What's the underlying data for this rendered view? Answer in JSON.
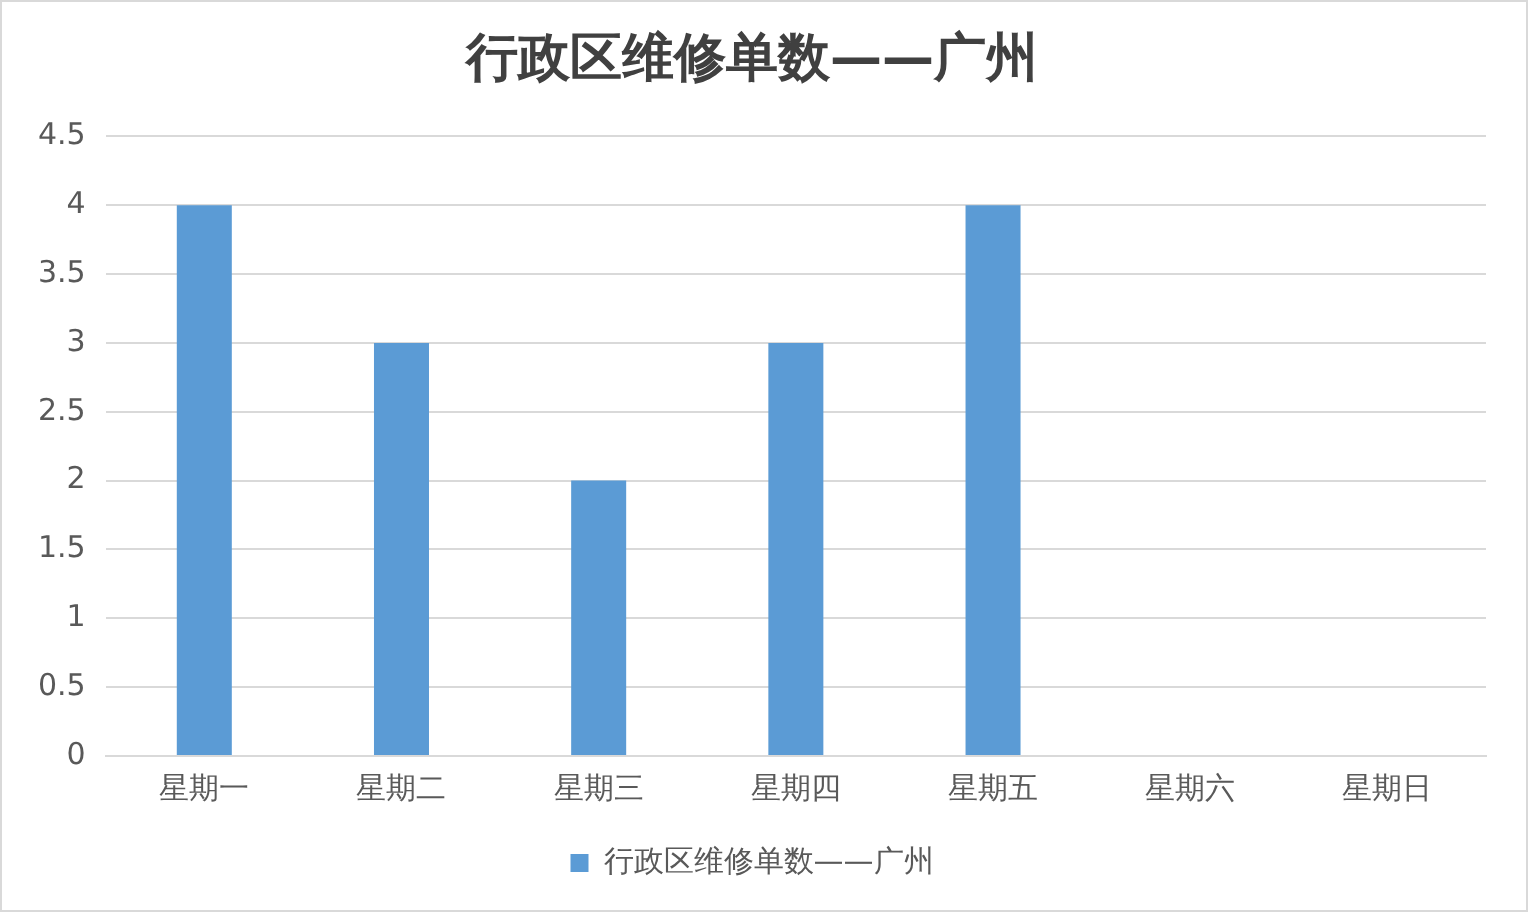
{
  "chart_data": {
    "type": "bar",
    "title": "行政区维修单数——广州",
    "categories": [
      "星期一",
      "星期二",
      "星期三",
      "星期四",
      "星期五",
      "星期六",
      "星期日"
    ],
    "series": [
      {
        "name": "行政区维修单数——广州",
        "color": "#5b9bd5",
        "values": [
          4,
          3,
          2,
          3,
          4,
          0,
          0
        ]
      }
    ],
    "ylim": [
      0,
      4.5
    ],
    "yticks": [
      0,
      0.5,
      1,
      1.5,
      2,
      2.5,
      3,
      3.5,
      4,
      4.5
    ],
    "grid": "y",
    "legend": "bottom"
  }
}
